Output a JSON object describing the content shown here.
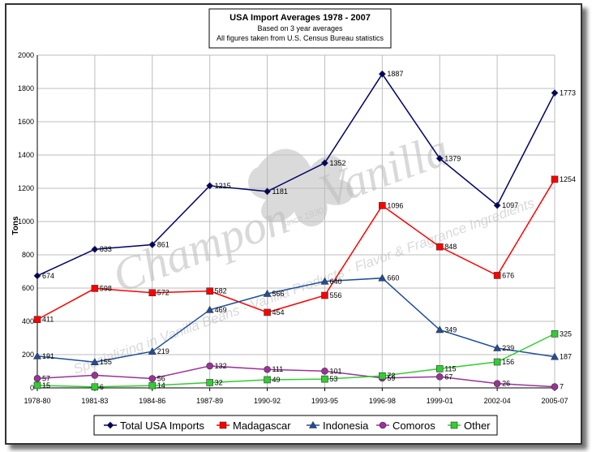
{
  "chart_data": {
    "type": "line",
    "title": "USA Import Averages 1978 - 2007",
    "subtitles": [
      "Based on 3 year averages",
      "All figures taken from U.S. Census Bureau statistics"
    ],
    "xlabel": "",
    "ylabel": "Tons",
    "ylim": [
      0,
      2000
    ],
    "yticks": [
      0,
      200,
      400,
      600,
      800,
      1000,
      1200,
      1400,
      1600,
      1800,
      2000
    ],
    "grid": true,
    "legend_position": "bottom",
    "categories": [
      "1978-80",
      "1981-83",
      "1984-86",
      "1987-89",
      "1990-92",
      "1993-95",
      "1996-98",
      "1999-01",
      "2002-04",
      "2005-07"
    ],
    "series": [
      {
        "name": "Total USA Imports",
        "color": "#000066",
        "marker": "diamond",
        "values": [
          674,
          833,
          861,
          1215,
          1181,
          1352,
          1887,
          1379,
          1097,
          1773
        ]
      },
      {
        "name": "Madagascar",
        "color": "#ff0000",
        "marker": "square",
        "values": [
          411,
          598,
          572,
          582,
          454,
          556,
          1096,
          848,
          676,
          1254
        ]
      },
      {
        "name": "Indonesia",
        "color": "#1f4e9a",
        "marker": "triangle",
        "values": [
          191,
          155,
          219,
          469,
          566,
          640,
          660,
          349,
          239,
          187
        ]
      },
      {
        "name": "Comoros",
        "color": "#993399",
        "marker": "circle",
        "values": [
          57,
          76,
          56,
          132,
          111,
          101,
          59,
          67,
          26,
          7
        ]
      },
      {
        "name": "Other",
        "color": "#33cc33",
        "marker": "square",
        "values": [
          15,
          6,
          14,
          32,
          49,
          53,
          72,
          115,
          156,
          325
        ]
      }
    ],
    "data_labels": {
      "Total USA Imports": [
        "674",
        "833",
        "861",
        "1215",
        "1181",
        "1352",
        "1887",
        "1379",
        "1097",
        "1773"
      ],
      "Madagascar": [
        "411",
        "598",
        "572",
        "582",
        "454",
        "556",
        "1096",
        "848",
        "676",
        "1254"
      ],
      "Indonesia": [
        "191",
        "155",
        "219",
        "469",
        "566",
        "640",
        "660",
        "349",
        "239",
        "187"
      ],
      "Comoros": [
        "57",
        "",
        "56",
        "132",
        "111",
        "101",
        "59",
        "67",
        "26",
        "7"
      ],
      "Other": [
        "15",
        "6",
        "14",
        "32",
        "49",
        "53",
        "72",
        "115",
        "156",
        "325"
      ]
    }
  },
  "watermark": {
    "brand": "Champon",
    "product": "Vanilla",
    "since": "Since 1930",
    "tagline": "Specializing in Vanilla Beans · Vanilla Products · Flavor & Fragrance Ingredients"
  }
}
